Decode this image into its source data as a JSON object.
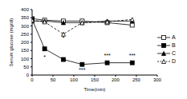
{
  "chart_data": {
    "type": "line",
    "x_label": "Time(min)",
    "y_label": "Serum glucose (mg/dl)",
    "x": [
      0,
      30,
      75,
      120,
      180,
      240
    ],
    "series": [
      {
        "name": "A",
        "color": "#000000",
        "marker": "square-open",
        "line_style": "solid",
        "values": [
          345,
          335,
          330,
          330,
          320,
          305
        ]
      },
      {
        "name": "B",
        "color": "#000000",
        "marker": "square",
        "line_style": "solid",
        "values": [
          340,
          160,
          95,
          65,
          75,
          75
        ]
      },
      {
        "name": "C",
        "color": "#000000",
        "marker": "triangle",
        "line_style": "solid",
        "values": [
          330,
          330,
          320,
          320,
          330,
          330
        ]
      },
      {
        "name": "D",
        "color": "#000000",
        "marker": "triangle-open",
        "line_style": "dashed",
        "values": [
          335,
          325,
          250,
          320,
          325,
          340
        ]
      }
    ],
    "xlim": [
      0,
      300
    ],
    "xticks": [
      0,
      50,
      100,
      150,
      200,
      250,
      300
    ],
    "ylim": [
      0,
      400
    ],
    "yticks": [
      0,
      50,
      100,
      150,
      200,
      250,
      300,
      350,
      400
    ],
    "legend": "right",
    "annotations": [
      {
        "x": 30,
        "y": 110,
        "text": "*"
      },
      {
        "x": 75,
        "y": 225,
        "text": "*"
      },
      {
        "x": 120,
        "y": 30,
        "text": "***"
      },
      {
        "x": 180,
        "y": 120,
        "text": "***"
      },
      {
        "x": 240,
        "y": 120,
        "text": "***"
      }
    ]
  }
}
